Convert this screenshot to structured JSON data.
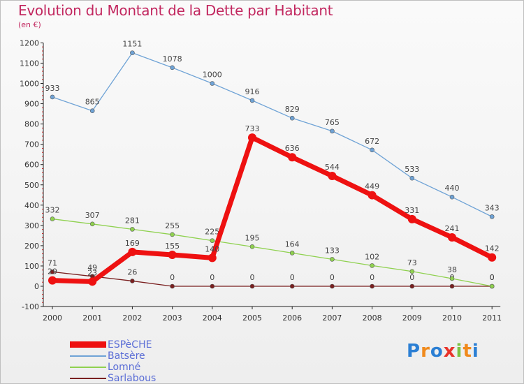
{
  "chart_data": {
    "type": "line",
    "title": "Evolution du Montant de la Dette par Habitant",
    "subtitle": "(en €)",
    "x": [
      "2000",
      "2001",
      "2002",
      "2003",
      "2004",
      "2005",
      "2006",
      "2007",
      "2008",
      "2009",
      "2010",
      "2011"
    ],
    "ylim": [
      -100,
      1200
    ],
    "yticks": [
      -100,
      0,
      100,
      200,
      300,
      400,
      500,
      600,
      700,
      800,
      900,
      1000,
      1100,
      1200
    ],
    "grid": false,
    "legend_position": "bottom-left",
    "series": [
      {
        "name": "Sarlabous",
        "color": "#7a1f1f",
        "values": [
          71,
          49,
          26,
          0,
          0,
          0,
          0,
          0,
          0,
          0,
          0,
          0
        ]
      },
      {
        "name": "Lomné",
        "color": "#8fd14f",
        "values": [
          332,
          307,
          281,
          255,
          225,
          195,
          164,
          133,
          102,
          73,
          38,
          0
        ]
      },
      {
        "name": "Batsère",
        "color": "#6fa3d6",
        "values": [
          933,
          865,
          1151,
          1078,
          1000,
          916,
          829,
          765,
          672,
          533,
          440,
          343
        ]
      },
      {
        "name": "ESPèCHE",
        "color": "#ee1111",
        "values": [
          29,
          23,
          169,
          155,
          140,
          733,
          636,
          544,
          449,
          331,
          241,
          142
        ]
      }
    ],
    "legend": [
      "ESPèCHE",
      "Batsère",
      "Lomné",
      "Sarlabous"
    ]
  },
  "logo": {
    "text": "Proxiti"
  },
  "colors": {
    "title": "#c2275f",
    "axis": "#000000",
    "label": "#444444"
  }
}
